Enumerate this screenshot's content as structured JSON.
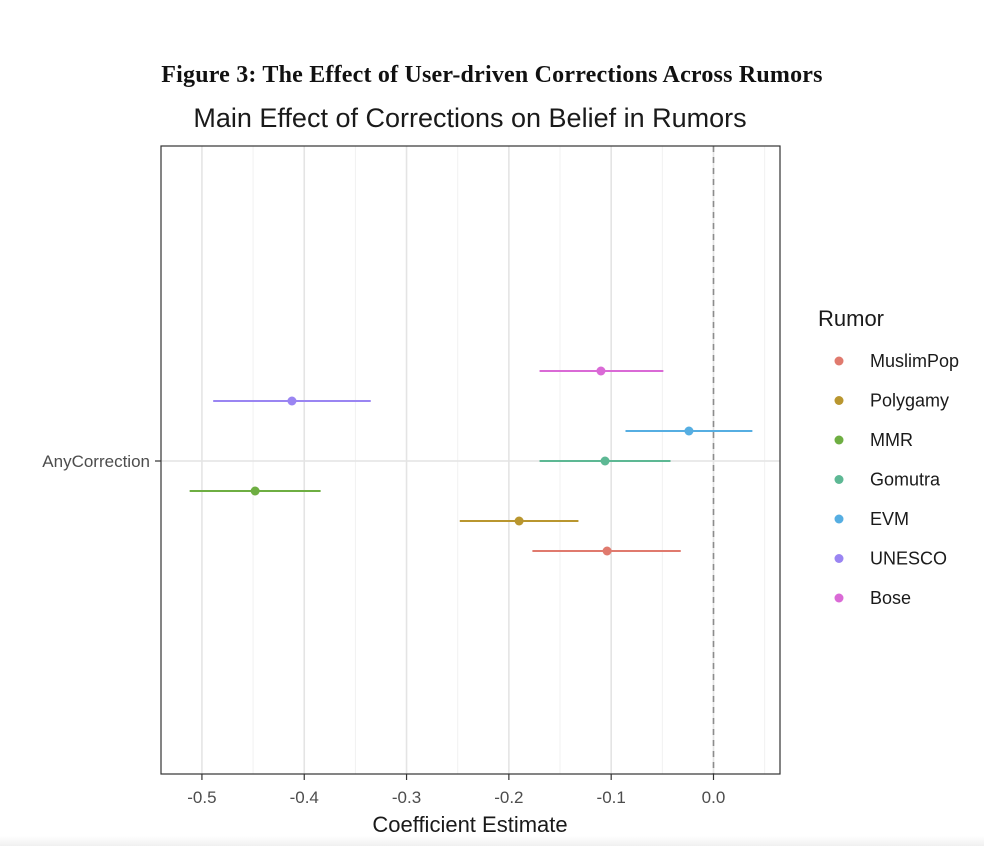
{
  "figure_caption": "Figure 3: The Effect of User-driven Corrections Across Rumors",
  "chart_data": {
    "type": "scatter",
    "subtype": "coefficient-plot",
    "title": "Main Effect of Corrections on Belief in Rumors",
    "xlabel": "Coefficient Estimate",
    "ylabel": "",
    "xlim": [
      -0.54,
      0.065
    ],
    "x_ticks": [
      -0.5,
      -0.4,
      -0.3,
      -0.2,
      -0.1,
      0.0
    ],
    "x_tick_labels": [
      "-0.5",
      "-0.4",
      "-0.3",
      "-0.2",
      "-0.1",
      "0.0"
    ],
    "y_categories": [
      "AnyCorrection"
    ],
    "reference_line": {
      "x": 0.0,
      "style": "dashed"
    },
    "grid": true,
    "legend": {
      "title": "Rumor",
      "position": "right"
    },
    "series": [
      {
        "name": "MuslimPop",
        "color": "#E07A6E",
        "estimate": -0.104,
        "ci_low": -0.177,
        "ci_high": -0.032,
        "offset": -3
      },
      {
        "name": "Polygamy",
        "color": "#B9962F",
        "estimate": -0.19,
        "ci_low": -0.248,
        "ci_high": -0.132,
        "offset": -2
      },
      {
        "name": "MMR",
        "color": "#6EAE42",
        "estimate": -0.448,
        "ci_low": -0.512,
        "ci_high": -0.384,
        "offset": -1
      },
      {
        "name": "Gomutra",
        "color": "#5DB894",
        "estimate": -0.106,
        "ci_low": -0.17,
        "ci_high": -0.042,
        "offset": 0
      },
      {
        "name": "EVM",
        "color": "#56AEE2",
        "estimate": -0.024,
        "ci_low": -0.086,
        "ci_high": 0.038,
        "offset": 1
      },
      {
        "name": "UNESCO",
        "color": "#9A85F2",
        "estimate": -0.412,
        "ci_low": -0.489,
        "ci_high": -0.335,
        "offset": 2
      },
      {
        "name": "Bose",
        "color": "#DA6AD6",
        "estimate": -0.11,
        "ci_low": -0.17,
        "ci_high": -0.049,
        "offset": 3
      }
    ]
  }
}
